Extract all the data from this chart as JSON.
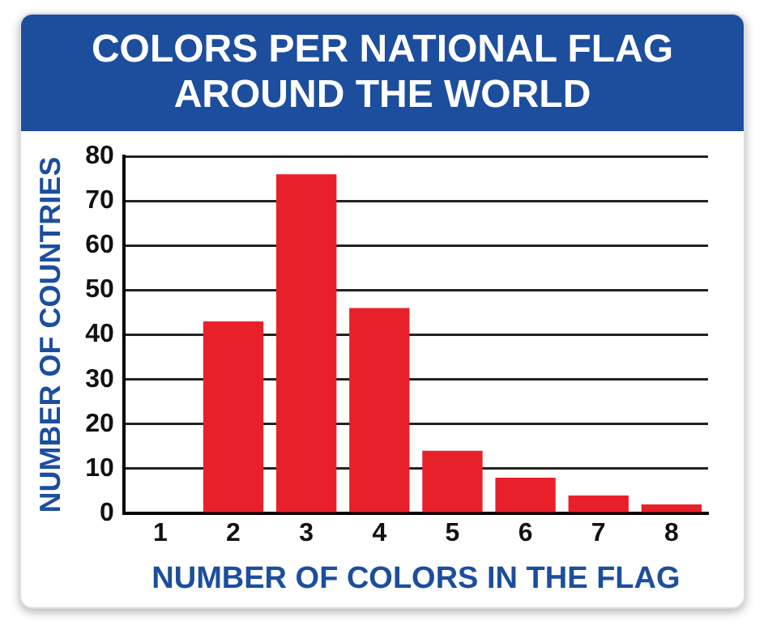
{
  "chart_data": {
    "type": "bar",
    "title": "COLORS PER NATIONAL FLAG AROUND THE WORLD",
    "xlabel": "NUMBER OF COLORS IN THE FLAG",
    "ylabel": "NUMBER OF COUNTRIES",
    "categories": [
      "1",
      "2",
      "3",
      "4",
      "5",
      "6",
      "7",
      "8"
    ],
    "values": [
      0,
      43,
      76,
      46,
      14,
      8,
      4,
      2
    ],
    "color": "#e8202a",
    "ylim": [
      0,
      80
    ],
    "yticks": [
      0,
      10,
      20,
      30,
      40,
      50,
      60,
      70,
      80
    ],
    "grid": "y"
  }
}
